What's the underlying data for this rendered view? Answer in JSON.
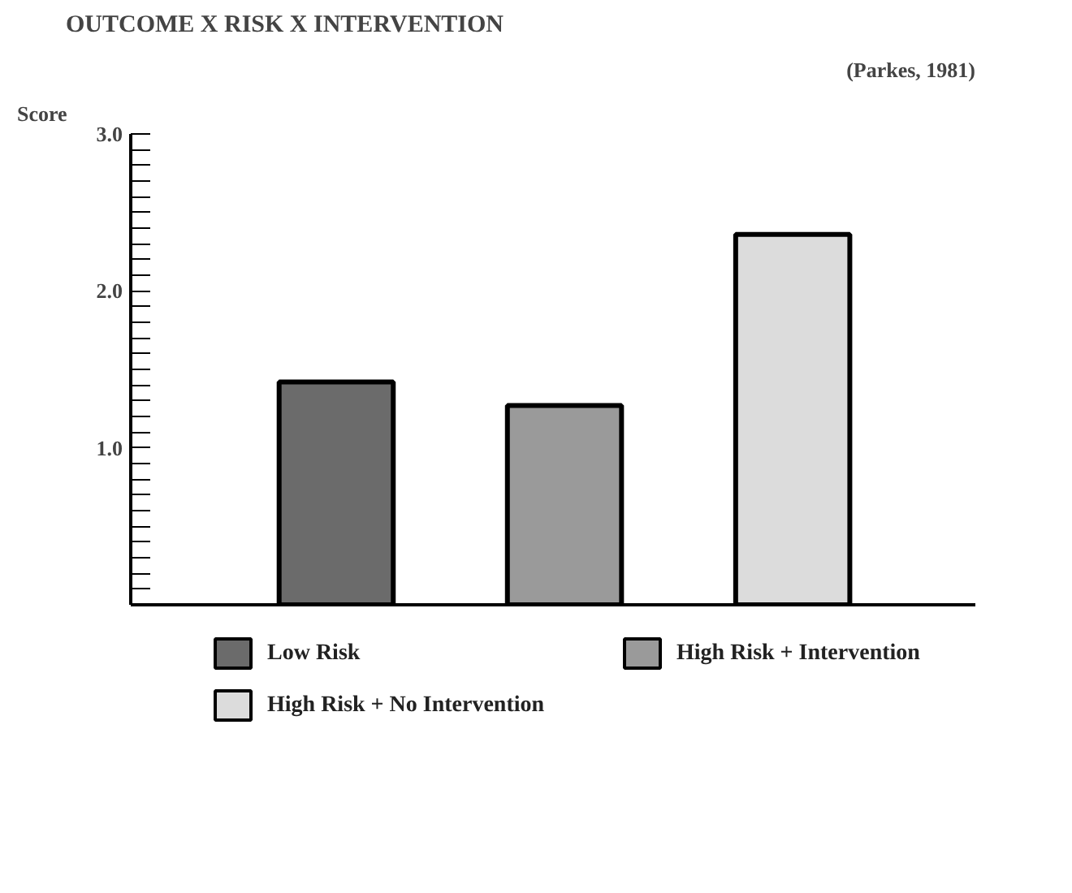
{
  "chart_data": {
    "type": "bar",
    "title": "OUTCOME X RISK X INTERVENTION",
    "subtitle": "(Parkes, 1981)",
    "ylabel": "Score",
    "categories": [
      null,
      null,
      null
    ],
    "series": [
      {
        "name": "Low Risk",
        "color": "#6b6b6b",
        "values": [
          1.42,
          null,
          null
        ]
      },
      {
        "name": "High Risk + Intervention",
        "color": "#9a9a9a",
        "values": [
          null,
          1.27,
          null
        ]
      },
      {
        "name": "High Risk + No Intervention",
        "color": "#dcdcdc",
        "values": [
          null,
          null,
          2.36
        ]
      }
    ],
    "ylim": [
      0,
      3
    ],
    "yticks": [
      {
        "value": 0.1,
        "label": null
      },
      {
        "value": 0.2,
        "label": null
      },
      {
        "value": 0.3,
        "label": null
      },
      {
        "value": 0.4,
        "label": null
      },
      {
        "value": 0.5,
        "label": null
      },
      {
        "value": 0.6,
        "label": null
      },
      {
        "value": 0.7,
        "label": null
      },
      {
        "value": 0.8,
        "label": null
      },
      {
        "value": 0.9,
        "label": null
      },
      {
        "value": 1,
        "label": "1.0"
      },
      {
        "value": 1.1,
        "label": null
      },
      {
        "value": 1.2,
        "label": null
      },
      {
        "value": 1.3,
        "label": null
      },
      {
        "value": 1.4,
        "label": null
      },
      {
        "value": 1.5,
        "label": null
      },
      {
        "value": 1.6,
        "label": null
      },
      {
        "value": 1.7,
        "label": null
      },
      {
        "value": 1.8,
        "label": null
      },
      {
        "value": 1.9,
        "label": null
      },
      {
        "value": 2,
        "label": "2.0"
      },
      {
        "value": 2.1,
        "label": null
      },
      {
        "value": 2.2,
        "label": null
      },
      {
        "value": 2.3,
        "label": null
      },
      {
        "value": 2.4,
        "label": null
      },
      {
        "value": 2.5,
        "label": null
      },
      {
        "value": 2.6,
        "label": null
      },
      {
        "value": 2.7,
        "label": null
      },
      {
        "value": 2.8,
        "label": null
      },
      {
        "value": 2.9,
        "label": null
      },
      {
        "value": 3,
        "label": "3.0"
      }
    ],
    "grid": false,
    "legend": "bottom",
    "tick_labels": "y"
  }
}
